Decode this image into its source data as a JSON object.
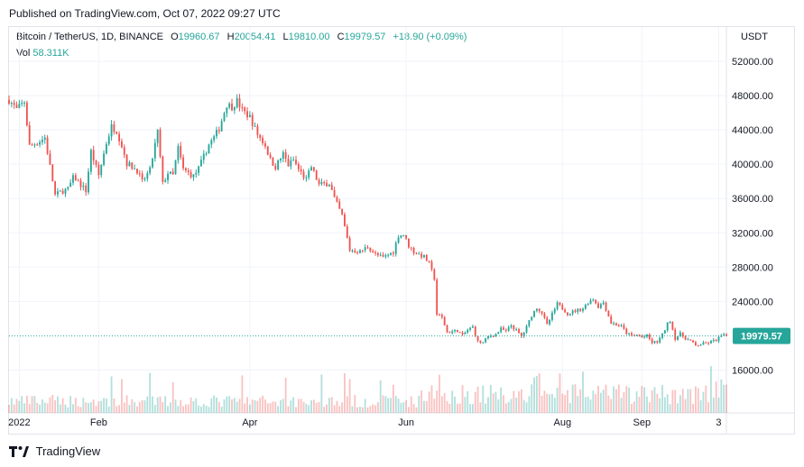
{
  "header": {
    "published": "Published on TradingView.com, Oct 07, 2022 09:27 UTC"
  },
  "legend": {
    "symbol": "Bitcoin / TetherUS, 1D, BINANCE",
    "o_label": "O",
    "o_value": "19960.67",
    "h_label": "H",
    "h_value": "20054.41",
    "l_label": "L",
    "l_value": "19810.00",
    "c_label": "C",
    "c_value": "19979.57",
    "change": "+18.90 (+0.09%)",
    "vol_label": "Vol",
    "vol_value": "58.311K"
  },
  "currency": "USDT",
  "footer": {
    "brand": "TradingView"
  },
  "colors": {
    "up": "#26a69a",
    "down": "#ef5350",
    "grid": "#f0f3fa",
    "axis_text": "#131722",
    "last_price": "#26a69a"
  },
  "chart_data": {
    "type": "candlestick",
    "title": "Bitcoin / TetherUS, 1D, BINANCE",
    "y_axis": {
      "ticks": [
        "52000.00",
        "48000.00",
        "44000.00",
        "40000.00",
        "36000.00",
        "32000.00",
        "28000.00",
        "24000.00",
        "16000.00"
      ],
      "range": [
        11000,
        56000
      ]
    },
    "x_axis": {
      "ticks": [
        {
          "label": "2022",
          "day": 4
        },
        {
          "label": "Feb",
          "day": 35
        },
        {
          "label": "Apr",
          "day": 94
        },
        {
          "label": "Jun",
          "day": 155
        },
        {
          "label": "Aug",
          "day": 216
        },
        {
          "label": "Sep",
          "day": 247
        },
        {
          "label": "3",
          "day": 277
        }
      ],
      "range": [
        0,
        280
      ]
    },
    "last_price": {
      "value": 19979.57,
      "label": "19979.57"
    },
    "close_points": [
      [
        0,
        47500
      ],
      [
        3,
        46400
      ],
      [
        6,
        47300
      ],
      [
        8,
        42100
      ],
      [
        12,
        42700
      ],
      [
        14,
        43100
      ],
      [
        18,
        36400
      ],
      [
        21,
        36900
      ],
      [
        23,
        37100
      ],
      [
        25,
        38400
      ],
      [
        26,
        38300
      ],
      [
        30,
        36900
      ],
      [
        32,
        41500
      ],
      [
        35,
        38700
      ],
      [
        38,
        42500
      ],
      [
        40,
        44400
      ],
      [
        42,
        43900
      ],
      [
        44,
        42200
      ],
      [
        46,
        40100
      ],
      [
        50,
        39300
      ],
      [
        52,
        37900
      ],
      [
        55,
        39300
      ],
      [
        58,
        43800
      ],
      [
        60,
        37700
      ],
      [
        62,
        39000
      ],
      [
        64,
        38700
      ],
      [
        66,
        41900
      ],
      [
        68,
        39400
      ],
      [
        72,
        38600
      ],
      [
        74,
        39500
      ],
      [
        76,
        40900
      ],
      [
        78,
        42300
      ],
      [
        80,
        43100
      ],
      [
        82,
        44200
      ],
      [
        85,
        47000
      ],
      [
        87,
        46700
      ],
      [
        89,
        47400
      ],
      [
        91,
        46300
      ],
      [
        94,
        45500
      ],
      [
        97,
        43500
      ],
      [
        100,
        42200
      ],
      [
        102,
        40500
      ],
      [
        104,
        39700
      ],
      [
        107,
        41200
      ],
      [
        109,
        39900
      ],
      [
        111,
        40500
      ],
      [
        113,
        39400
      ],
      [
        116,
        38200
      ],
      [
        118,
        39700
      ],
      [
        121,
        37600
      ],
      [
        123,
        37700
      ],
      [
        125,
        37800
      ],
      [
        127,
        36000
      ],
      [
        130,
        34000
      ],
      [
        133,
        30000
      ],
      [
        137,
        29800
      ],
      [
        140,
        30400
      ],
      [
        143,
        29500
      ],
      [
        146,
        29100
      ],
      [
        150,
        29800
      ],
      [
        152,
        31700
      ],
      [
        154,
        31800
      ],
      [
        156,
        30500
      ],
      [
        158,
        29800
      ],
      [
        160,
        29500
      ],
      [
        162,
        29200
      ],
      [
        164,
        28400
      ],
      [
        166,
        26700
      ],
      [
        167,
        22500
      ],
      [
        169,
        22100
      ],
      [
        171,
        20400
      ],
      [
        173,
        20500
      ],
      [
        175,
        20600
      ],
      [
        177,
        20000
      ],
      [
        179,
        20700
      ],
      [
        181,
        21000
      ],
      [
        183,
        19300
      ],
      [
        185,
        19200
      ],
      [
        187,
        19900
      ],
      [
        190,
        20200
      ],
      [
        192,
        20800
      ],
      [
        194,
        20500
      ],
      [
        196,
        21200
      ],
      [
        198,
        20600
      ],
      [
        200,
        19900
      ],
      [
        202,
        21000
      ],
      [
        204,
        22400
      ],
      [
        206,
        23300
      ],
      [
        208,
        22700
      ],
      [
        210,
        21200
      ],
      [
        212,
        22500
      ],
      [
        214,
        23700
      ],
      [
        216,
        23200
      ],
      [
        218,
        22600
      ],
      [
        221,
        22900
      ],
      [
        224,
        23200
      ],
      [
        226,
        23900
      ],
      [
        228,
        24300
      ],
      [
        230,
        23400
      ],
      [
        232,
        23900
      ],
      [
        235,
        21500
      ],
      [
        237,
        21300
      ],
      [
        239,
        21100
      ],
      [
        241,
        20300
      ],
      [
        243,
        20000
      ],
      [
        245,
        20100
      ],
      [
        247,
        19800
      ],
      [
        249,
        20000
      ],
      [
        251,
        19200
      ],
      [
        253,
        19300
      ],
      [
        255,
        20100
      ],
      [
        257,
        21400
      ],
      [
        258,
        21800
      ],
      [
        260,
        19700
      ],
      [
        262,
        20200
      ],
      [
        264,
        19700
      ],
      [
        266,
        19400
      ],
      [
        268,
        18800
      ],
      [
        270,
        19000
      ],
      [
        272,
        19100
      ],
      [
        274,
        19300
      ],
      [
        276,
        19500
      ],
      [
        278,
        20000
      ],
      [
        280,
        19980
      ]
    ]
  }
}
